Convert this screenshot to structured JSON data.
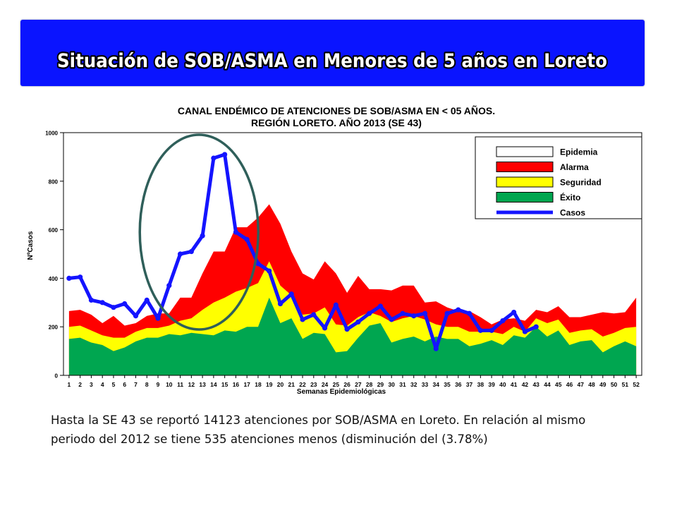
{
  "slide": {
    "title": "Situación de SOB/ASMA en Menores de 5 años en Loreto",
    "caption_line1": "Hasta la SE 43 se reportó 14123 atenciones por SOB/ASMA en Loreto. En relación al mismo",
    "caption_line2": "periodo del 2012 se tiene 535 atenciones menos (disminución del  (3.78%)",
    "banner_color": "#0a14ff",
    "highlight_color": "#2f5f5a"
  },
  "chart_data": {
    "type": "area",
    "title_line1": "CANAL ENDÉMICO DE ATENCIONES DE SOB/ASMA EN < 05 AÑOS.",
    "title_line2": "REGIÓN LORETO. AÑO 2013 (SE 43)",
    "xlabel": "Semanas Epidemiológicas",
    "ylabel": "NºCasos",
    "ylim": [
      0,
      1000
    ],
    "yticks": [
      0,
      200,
      400,
      600,
      800,
      1000
    ],
    "grid": false,
    "legend_position": "top-right",
    "x": [
      1,
      2,
      3,
      4,
      5,
      6,
      7,
      8,
      9,
      10,
      11,
      12,
      13,
      14,
      15,
      16,
      17,
      18,
      19,
      20,
      21,
      22,
      23,
      24,
      25,
      26,
      27,
      28,
      29,
      30,
      31,
      32,
      33,
      34,
      35,
      36,
      37,
      38,
      39,
      40,
      41,
      42,
      43,
      44,
      45,
      46,
      47,
      48,
      49,
      50,
      51,
      52
    ],
    "legend": [
      {
        "key": "epidemia",
        "label": "Epidemia",
        "color": "#ffffff"
      },
      {
        "key": "alarma",
        "label": "Alarma",
        "color": "#ff0000"
      },
      {
        "key": "seguridad",
        "label": "Seguridad",
        "color": "#ffff00"
      },
      {
        "key": "exito",
        "label": "Éxito",
        "color": "#00a650"
      },
      {
        "key": "casos",
        "label": "Casos",
        "color": "#1414ff"
      }
    ],
    "exito": [
      150,
      155,
      135,
      125,
      100,
      115,
      140,
      155,
      155,
      170,
      165,
      175,
      170,
      165,
      185,
      180,
      200,
      200,
      320,
      215,
      235,
      150,
      175,
      170,
      95,
      100,
      155,
      205,
      215,
      135,
      150,
      160,
      140,
      160,
      150,
      150,
      120,
      130,
      145,
      125,
      165,
      155,
      200,
      160,
      185,
      125,
      140,
      145,
      95,
      120,
      140,
      120
    ],
    "seguridad": [
      200,
      205,
      185,
      165,
      155,
      155,
      180,
      195,
      195,
      205,
      225,
      235,
      270,
      300,
      320,
      345,
      360,
      380,
      470,
      370,
      330,
      250,
      255,
      280,
      210,
      205,
      240,
      260,
      245,
      220,
      235,
      245,
      230,
      210,
      200,
      200,
      180,
      180,
      180,
      170,
      200,
      180,
      235,
      215,
      230,
      175,
      185,
      190,
      160,
      175,
      195,
      200
    ],
    "alarma": [
      265,
      270,
      250,
      215,
      245,
      205,
      215,
      245,
      255,
      255,
      320,
      320,
      420,
      510,
      510,
      610,
      610,
      650,
      705,
      625,
      510,
      420,
      395,
      470,
      420,
      340,
      410,
      355,
      355,
      350,
      370,
      370,
      300,
      305,
      280,
      265,
      265,
      240,
      210,
      230,
      235,
      225,
      270,
      260,
      285,
      240,
      240,
      250,
      260,
      255,
      260,
      320
    ],
    "casos": [
      400,
      405,
      310,
      300,
      280,
      295,
      245,
      310,
      235,
      370,
      500,
      510,
      575,
      895,
      910,
      590,
      560,
      460,
      430,
      295,
      335,
      230,
      250,
      195,
      290,
      190,
      220,
      255,
      285,
      230,
      255,
      245,
      255,
      110,
      255,
      270,
      255,
      185,
      185,
      225,
      260,
      180,
      200
    ]
  }
}
